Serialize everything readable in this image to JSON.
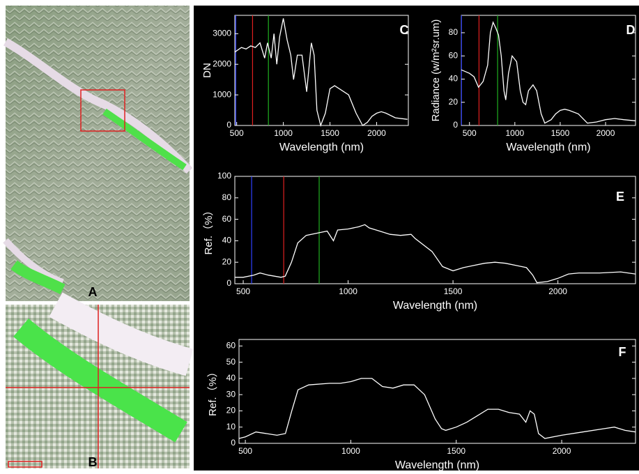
{
  "image_labels": [
    "A",
    "B"
  ],
  "chart_data": [
    {
      "type": "line",
      "panel_label": "C",
      "xlabel": "Wavelength  (nm)",
      "ylabel": "DN",
      "color": "#ffffff",
      "xlim": [
        480,
        2340
      ],
      "ylim": [
        0,
        3600
      ],
      "xticks": [
        500,
        1000,
        1500,
        2000
      ],
      "yticks": [
        0,
        1000,
        2000,
        3000
      ],
      "markers": [
        {
          "x": 490,
          "color": "#3040ff"
        },
        {
          "x": 670,
          "color": "#e02020"
        },
        {
          "x": 840,
          "color": "#20b020"
        }
      ],
      "x": [
        480,
        550,
        600,
        650,
        700,
        750,
        800,
        830,
        870,
        900,
        930,
        960,
        1000,
        1040,
        1080,
        1110,
        1150,
        1200,
        1250,
        1300,
        1330,
        1360,
        1400,
        1450,
        1500,
        1550,
        1600,
        1700,
        1780,
        1850,
        1900,
        1950,
        2000,
        2050,
        2100,
        2200,
        2330
      ],
      "values": [
        2400,
        2550,
        2500,
        2600,
        2550,
        2700,
        2200,
        2700,
        2200,
        3000,
        2000,
        2900,
        3500,
        2800,
        2300,
        1500,
        2300,
        2300,
        1100,
        2700,
        2300,
        500,
        0,
        400,
        1200,
        1300,
        1200,
        1000,
        400,
        0,
        100,
        300,
        400,
        450,
        400,
        250,
        200
      ]
    },
    {
      "type": "line",
      "panel_label": "D",
      "xlabel": "Wavelength  (nm)",
      "ylabel": "Radiance (w/m²sr.um)",
      "color": "#ffffff",
      "xlim": [
        410,
        2330
      ],
      "ylim": [
        0,
        95
      ],
      "xticks": [
        500,
        1000,
        1500,
        2000
      ],
      "yticks": [
        0,
        20,
        40,
        60,
        80
      ],
      "markers": [
        {
          "x": 412,
          "color": "#3040ff"
        },
        {
          "x": 605,
          "color": "#e02020"
        },
        {
          "x": 810,
          "color": "#20b020"
        }
      ],
      "x": [
        410,
        500,
        550,
        600,
        650,
        700,
        730,
        760,
        790,
        820,
        850,
        880,
        900,
        930,
        970,
        1020,
        1060,
        1090,
        1120,
        1150,
        1200,
        1240,
        1290,
        1330,
        1400,
        1450,
        1500,
        1550,
        1600,
        1700,
        1800,
        1900,
        2000,
        2100,
        2200,
        2330
      ],
      "values": [
        48,
        45,
        42,
        33,
        38,
        52,
        80,
        89,
        84,
        78,
        60,
        30,
        22,
        45,
        60,
        55,
        30,
        20,
        18,
        30,
        35,
        30,
        10,
        2,
        5,
        10,
        13,
        14,
        13,
        10,
        2,
        3,
        5,
        6,
        5,
        4
      ]
    },
    {
      "type": "line",
      "panel_label": "E",
      "xlabel": "Wavelength  (nm)",
      "ylabel": "Ref.（%）",
      "color": "#ffffff",
      "xlim": [
        460,
        2370
      ],
      "ylim": [
        0,
        100
      ],
      "xticks": [
        500,
        1000,
        1500,
        2000
      ],
      "yticks": [
        0,
        20,
        40,
        60,
        80,
        100
      ],
      "markers": [
        {
          "x": 540,
          "color": "#3040ff"
        },
        {
          "x": 693,
          "color": "#e02020"
        },
        {
          "x": 862,
          "color": "#20b020"
        }
      ],
      "x": [
        460,
        500,
        550,
        580,
        620,
        680,
        700,
        730,
        760,
        800,
        850,
        900,
        930,
        950,
        1000,
        1050,
        1080,
        1100,
        1150,
        1200,
        1250,
        1300,
        1320,
        1400,
        1450,
        1500,
        1550,
        1600,
        1650,
        1700,
        1750,
        1800,
        1850,
        1880,
        1900,
        1950,
        2000,
        2050,
        2100,
        2200,
        2300,
        2370
      ],
      "values": [
        6,
        6,
        8,
        10,
        8,
        6,
        7,
        20,
        38,
        45,
        47,
        49,
        40,
        50,
        51,
        53,
        55,
        52,
        49,
        46,
        45,
        46,
        42,
        30,
        16,
        12,
        15,
        17,
        19,
        20,
        19,
        17,
        15,
        8,
        1,
        2,
        5,
        9,
        10,
        10,
        11,
        9
      ]
    },
    {
      "type": "line",
      "panel_label": "F",
      "xlabel": "Wavelength  (nm)",
      "ylabel": "Ref.（%）",
      "color": "#ffffff",
      "xlim": [
        470,
        2350
      ],
      "ylim": [
        0,
        64
      ],
      "xticks": [
        500,
        1000,
        1500,
        2000
      ],
      "yticks": [
        0,
        10,
        20,
        30,
        40,
        50,
        60
      ],
      "markers": [],
      "x": [
        470,
        500,
        550,
        600,
        650,
        690,
        720,
        750,
        800,
        900,
        950,
        1000,
        1050,
        1100,
        1150,
        1200,
        1250,
        1300,
        1350,
        1400,
        1430,
        1450,
        1500,
        1550,
        1600,
        1650,
        1700,
        1750,
        1800,
        1830,
        1850,
        1870,
        1890,
        1920,
        2000,
        2100,
        2200,
        2250,
        2300,
        2350
      ],
      "values": [
        3,
        4,
        7,
        6,
        5,
        6,
        20,
        33,
        36,
        37,
        37,
        38,
        40,
        40,
        35,
        34,
        36,
        36,
        30,
        15,
        9,
        8,
        10,
        13,
        17,
        21,
        21,
        19,
        18,
        13,
        20,
        18,
        6,
        3,
        5,
        7,
        9,
        10,
        8,
        7
      ]
    }
  ]
}
